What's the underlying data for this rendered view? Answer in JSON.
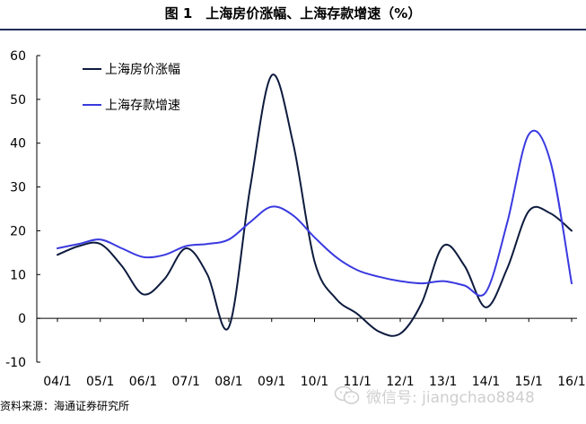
{
  "title": "图 1　上海房价涨幅、上海存款增速（%）",
  "source": "资料来源：海通证券研究所",
  "watermark": "微信号: jiangchao8848",
  "colors": {
    "house_price": "#0d1b3e",
    "deposit": "#3a3ae0",
    "axis": "#000000",
    "title_rule": "#1f2e5a"
  },
  "chart_data": {
    "type": "line",
    "title": "图 1　上海房价涨幅、上海存款增速（%）",
    "categories": [
      "04/1",
      "05/1",
      "06/1",
      "07/1",
      "08/1",
      "09/1",
      "10/1",
      "11/1",
      "12/1",
      "13/1",
      "14/1",
      "15/1",
      "16/1"
    ],
    "x_ticks": [
      "04/1",
      "05/1",
      "06/1",
      "07/1",
      "08/1",
      "09/1",
      "10/1",
      "11/1",
      "12/1",
      "13/1",
      "14/1",
      "15/1",
      "16/1"
    ],
    "y_ticks": [
      "60",
      "50",
      "40",
      "30",
      "20",
      "10",
      "0",
      "-10"
    ],
    "ylim": [
      -10,
      60
    ],
    "grid": false,
    "legend_position": "top-left",
    "series": [
      {
        "name": "上海房价涨幅",
        "color": "#0d1b3e",
        "points": [
          [
            0.0,
            14.5
          ],
          [
            0.5,
            16.5
          ],
          [
            1.0,
            17.0
          ],
          [
            1.5,
            12.0
          ],
          [
            2.0,
            5.5
          ],
          [
            2.5,
            9.0
          ],
          [
            3.0,
            16.0
          ],
          [
            3.5,
            10.0
          ],
          [
            4.0,
            -2.0
          ],
          [
            4.5,
            30.0
          ],
          [
            5.0,
            55.5
          ],
          [
            5.5,
            40.0
          ],
          [
            6.0,
            13.0
          ],
          [
            6.5,
            4.5
          ],
          [
            7.0,
            1.0
          ],
          [
            7.5,
            -3.0
          ],
          [
            8.0,
            -3.5
          ],
          [
            8.5,
            3.5
          ],
          [
            9.0,
            16.5
          ],
          [
            9.5,
            12.0
          ],
          [
            10.0,
            2.5
          ],
          [
            10.5,
            11.5
          ],
          [
            11.0,
            24.5
          ],
          [
            11.5,
            24.0
          ],
          [
            12.0,
            20.0
          ]
        ]
      },
      {
        "name": "上海存款增速",
        "color": "#3a3ae0",
        "points": [
          [
            0.0,
            16.0
          ],
          [
            0.5,
            17.0
          ],
          [
            1.0,
            18.0
          ],
          [
            1.5,
            16.0
          ],
          [
            2.0,
            14.0
          ],
          [
            2.5,
            14.5
          ],
          [
            3.0,
            16.5
          ],
          [
            3.5,
            17.0
          ],
          [
            4.0,
            18.0
          ],
          [
            4.5,
            22.0
          ],
          [
            5.0,
            25.5
          ],
          [
            5.5,
            23.5
          ],
          [
            6.0,
            18.5
          ],
          [
            6.5,
            14.0
          ],
          [
            7.0,
            11.0
          ],
          [
            7.5,
            9.5
          ],
          [
            8.0,
            8.5
          ],
          [
            8.5,
            8.0
          ],
          [
            9.0,
            8.5
          ],
          [
            9.5,
            7.5
          ],
          [
            10.0,
            6.0
          ],
          [
            10.5,
            22.0
          ],
          [
            11.0,
            42.0
          ],
          [
            11.5,
            36.0
          ],
          [
            12.0,
            8.0
          ]
        ]
      }
    ]
  }
}
